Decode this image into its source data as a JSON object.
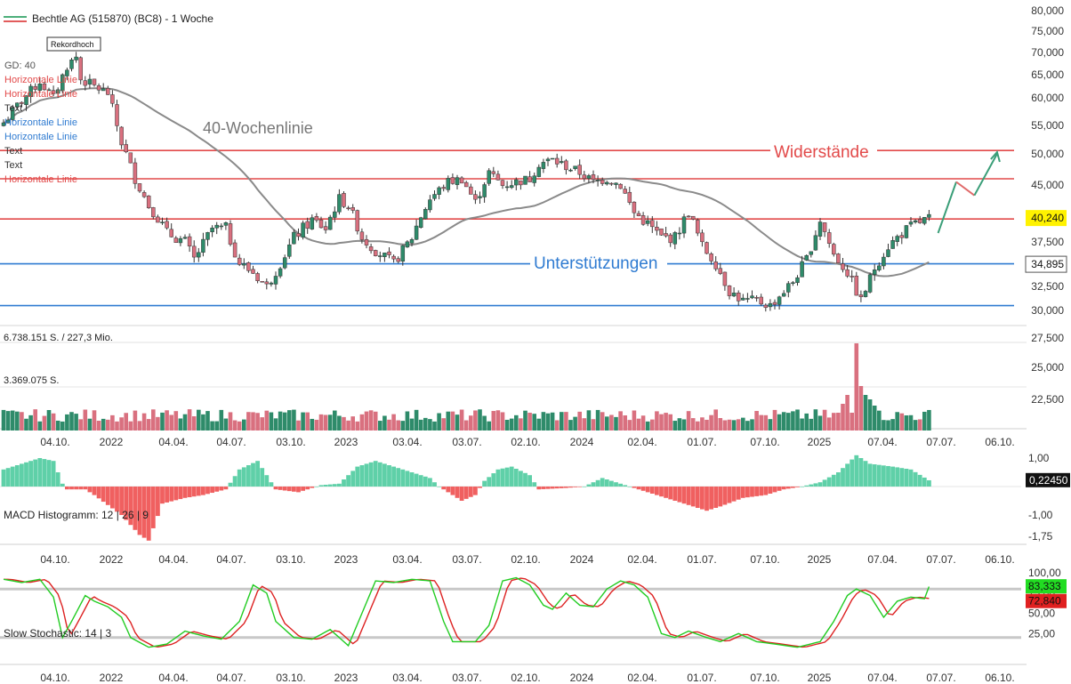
{
  "chart_data": {
    "type": "candlestick",
    "title": "Bechtle AG (515870) (BC8) - 1 Woche",
    "record_label": "Rekordhoch",
    "legend_entries": [
      "GD: 40",
      "Horizontale Linie",
      "Horizontale Linie",
      "Text",
      "Horizontale Linie",
      "Horizontale Linie",
      "Text",
      "Text",
      "Horizontale Linie"
    ],
    "annotations": {
      "ma_label": "40-Wochenlinie",
      "resistance_label": "Widerstände",
      "support_label": "Unterstützungen"
    },
    "price_axis": {
      "ylim": [
        27500,
        80000
      ],
      "ticks": [
        "80,000",
        "75,000",
        "70,000",
        "65,000",
        "60,000",
        "55,000",
        "50,000",
        "45,000",
        "40,000",
        "37,500",
        "35,000",
        "32,500",
        "30,000",
        "27,500",
        "25,000",
        "22,500"
      ],
      "tick_values": [
        80000,
        75000,
        70000,
        65000,
        60000,
        55000,
        50000,
        45000,
        40000,
        37500,
        35000,
        32500,
        30000,
        27500,
        25000,
        22500
      ],
      "current_price_label": "40,240",
      "current_price": 40240,
      "ma_price_label": "34,895",
      "ma_price": 34895
    },
    "resistance_levels": [
      50600,
      46000,
      40100
    ],
    "support_levels": [
      34950,
      30500
    ],
    "x_ticks": [
      "04.10.",
      "2022",
      "04.04.",
      "04.07.",
      "03.10.",
      "2023",
      "03.04.",
      "03.07.",
      "02.10.",
      "2024",
      "02.04.",
      "01.07.",
      "07.10.",
      "2025",
      "07.04.",
      "07.07.",
      "06.10."
    ],
    "weekly_close_anchors": {
      "x_index": [
        0,
        3,
        8,
        11,
        14,
        16,
        17,
        20,
        23,
        26,
        29,
        32,
        36,
        40,
        42,
        46,
        49,
        52,
        55,
        58,
        61,
        64,
        68,
        71,
        74,
        76,
        79,
        82,
        86,
        90,
        94,
        98,
        101,
        104,
        107,
        110,
        113,
        116,
        118,
        121,
        124,
        127,
        130,
        133,
        136,
        139,
        142,
        145,
        148,
        151,
        154,
        157,
        160,
        163,
        166,
        169,
        171,
        174,
        177,
        180,
        183,
        186,
        189,
        192,
        195,
        198,
        201,
        204
      ],
      "close": [
        55500,
        58500,
        63500,
        60000,
        67000,
        69000,
        64000,
        62500,
        61000,
        52000,
        46000,
        42000,
        38500,
        37500,
        35500,
        39000,
        39000,
        35000,
        34000,
        32500,
        35000,
        38000,
        40000,
        39000,
        43000,
        42000,
        38000,
        36500,
        35000,
        38000,
        43000,
        45500,
        46000,
        42500,
        47000,
        45000,
        45500,
        46000,
        48500,
        49000,
        48000,
        47000,
        45500,
        46000,
        45000,
        41000,
        39500,
        38000,
        38000,
        41000,
        37000,
        35000,
        32000,
        31000,
        31000,
        30500,
        31500,
        33000,
        35500,
        40000,
        36000,
        34000,
        31000,
        34500,
        37000,
        38500,
        39500,
        40240
      ]
    },
    "projection_path": {
      "x_index": [
        206,
        210,
        214,
        219
      ],
      "close": [
        38500,
        45500,
        43500,
        50000
      ]
    },
    "volume": {
      "max_label": "6.738.151 S. / 227,3 Mio.",
      "mid_label": "3.369.075 S.",
      "max_value": 6738151,
      "mid_value": 3369075
    },
    "macd": {
      "label": "MACD Histogramm: 12 | 26 | 9",
      "ticks": [
        "1,00",
        "-1,00",
        "-1,75"
      ],
      "tick_values": [
        1.0,
        -1.0,
        -1.75
      ],
      "current_label": "0,22450",
      "current_value": 0.2245
    },
    "stochastic": {
      "label": "Slow Stochastic: 14 | 3",
      "ticks": [
        "100,00",
        "75,00",
        "50,00",
        "25,00"
      ],
      "tick_values": [
        100,
        75,
        50,
        25
      ],
      "k_label": "83,333",
      "k_value": 83.333,
      "d_label": "72,840",
      "d_value": 72.84,
      "bands": [
        80,
        20
      ]
    },
    "colors": {
      "up": "#2e8b6a",
      "down": "#d9707f",
      "ma": "#8a8a8a",
      "resistance": "#e24a4a",
      "support": "#2f7bd1",
      "macd_pos": "#5fd0a8",
      "macd_neg": "#f06060",
      "stoch_k": "#22cc22",
      "stoch_d": "#dd2222",
      "price_badge": "#fff200",
      "projection_up": "#3a9e78",
      "projection_down": "#e06a6a"
    }
  }
}
